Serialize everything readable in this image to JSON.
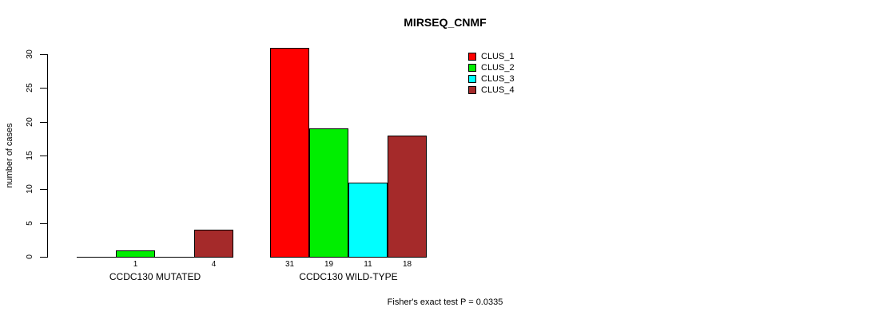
{
  "figure": {
    "background": "#ffffff",
    "title": "MIRSEQ_CNMF",
    "annotation": "Fisher's exact test P = 0.0335"
  },
  "chart_data": {
    "type": "bar",
    "title": "MIRSEQ_CNMF",
    "xlabel": "",
    "ylabel": "number of cases",
    "ylim": [
      0,
      31
    ],
    "yticks": [
      0,
      5,
      10,
      15,
      20,
      25,
      30
    ],
    "grid": false,
    "legend_position": "top-right",
    "categories": [
      "CCDC130 MUTATED",
      "CCDC130 WILD-TYPE"
    ],
    "series": [
      {
        "name": "CLUS_1",
        "color": "#ff0000",
        "values": [
          0,
          31
        ]
      },
      {
        "name": "CLUS_2",
        "color": "#00ee00",
        "values": [
          1,
          19
        ]
      },
      {
        "name": "CLUS_3",
        "color": "#00ffff",
        "values": [
          0,
          11
        ]
      },
      {
        "name": "CLUS_4",
        "color": "#a52a2a",
        "values": [
          4,
          18
        ]
      }
    ],
    "bar_value_labels": [
      "1",
      "4",
      "31",
      "19",
      "11",
      "18"
    ],
    "annotation": "Fisher's exact test P = 0.0335"
  }
}
